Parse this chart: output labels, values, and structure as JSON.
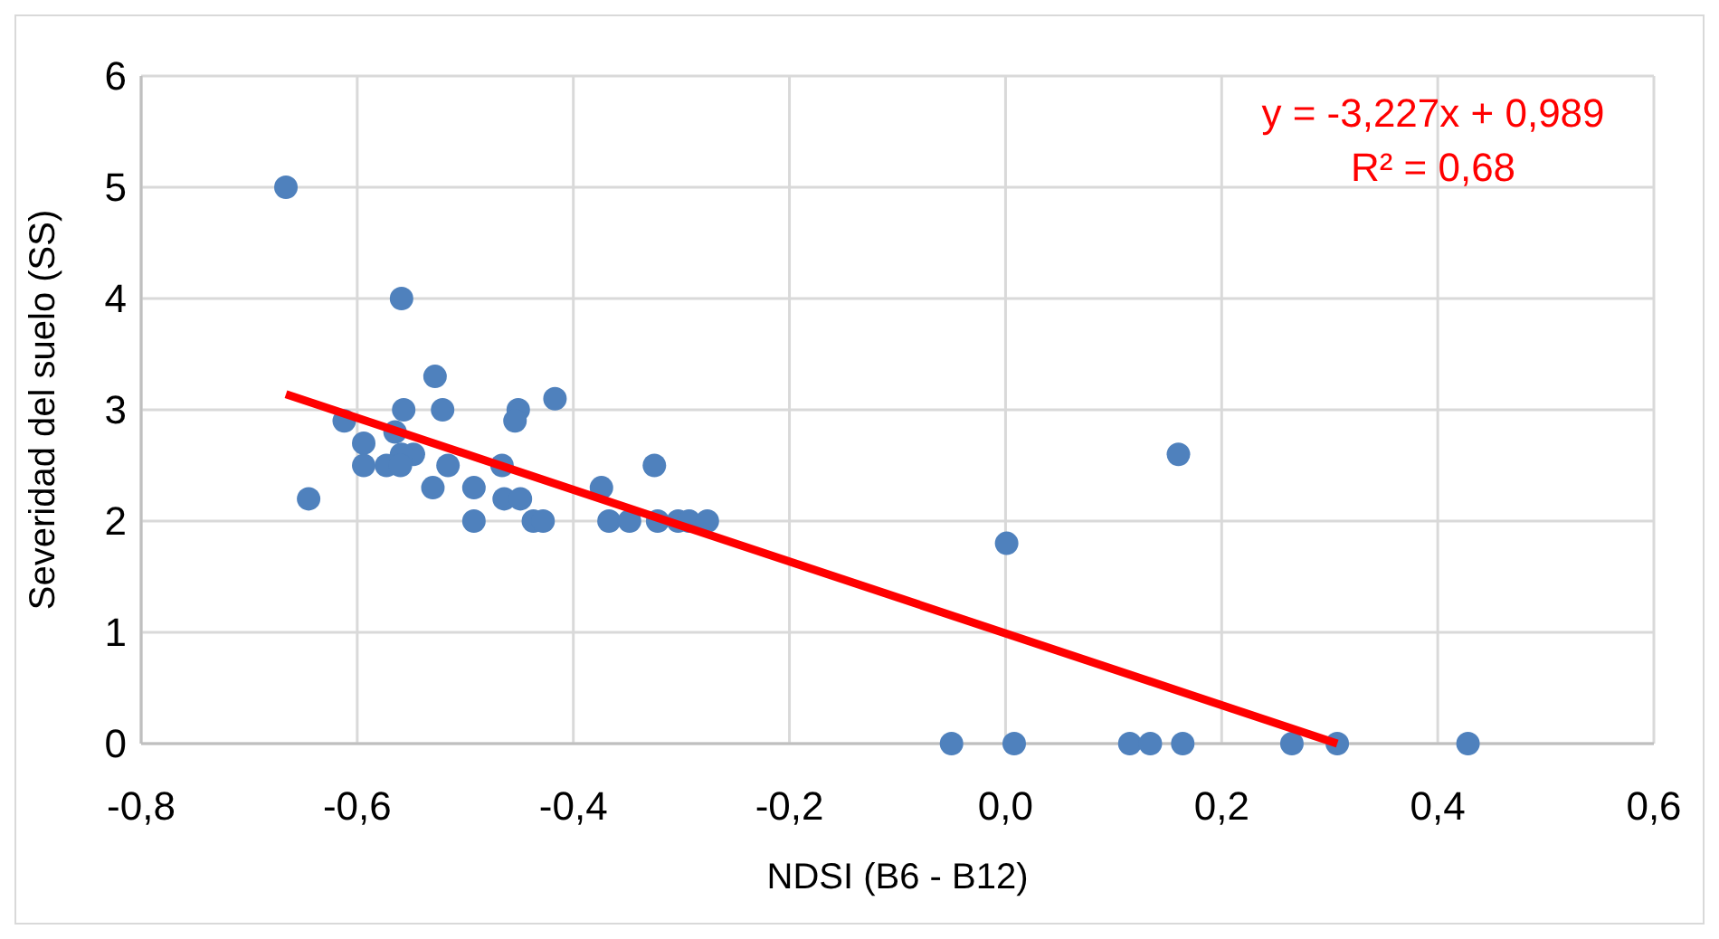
{
  "chart_data": {
    "type": "scatter",
    "xlabel": "NDSI (B6 - B12)",
    "ylabel": "Severidad del suelo (SS)",
    "xlim": [
      -0.8,
      0.6
    ],
    "ylim": [
      0,
      6
    ],
    "xticks": [
      {
        "value": -0.8,
        "label": "-0,8"
      },
      {
        "value": -0.6,
        "label": "-0,6"
      },
      {
        "value": -0.4,
        "label": "-0,4"
      },
      {
        "value": -0.2,
        "label": "-0,2"
      },
      {
        "value": 0,
        "label": "0,0"
      },
      {
        "value": 0.2,
        "label": "0,2"
      },
      {
        "value": 0.4,
        "label": "0,4"
      },
      {
        "value": 0.6,
        "label": "0,6"
      }
    ],
    "yticks": [
      0,
      1,
      2,
      3,
      4,
      5,
      6
    ],
    "grid": true,
    "marker": "circle",
    "series": [
      {
        "color": "#4f81bd",
        "x": [
          -0.666,
          -0.559,
          -0.528,
          -0.417,
          -0.557,
          -0.521,
          -0.451,
          -0.454,
          -0.612,
          -0.594,
          -0.565,
          -0.548,
          -0.559,
          -0.594,
          -0.573,
          -0.56,
          -0.516,
          -0.466,
          -0.645,
          -0.53,
          -0.492,
          -0.464,
          -0.449,
          -0.492,
          -0.437,
          -0.428,
          -0.374,
          -0.325,
          -0.367,
          -0.348,
          -0.322,
          -0.303,
          -0.293,
          -0.276,
          -0.05,
          0.001,
          0.008,
          0.115,
          0.134,
          0.16,
          0.164,
          0.265,
          0.307,
          0.428
        ],
        "values": [
          5,
          4,
          3.3,
          3.1,
          3,
          3,
          3,
          2.9,
          2.9,
          2.7,
          2.8,
          2.6,
          2.6,
          2.5,
          2.5,
          2.5,
          2.5,
          2.5,
          2.2,
          2.3,
          2.3,
          2.2,
          2.2,
          2,
          2,
          2,
          2.3,
          2.5,
          2,
          2,
          2,
          2,
          2,
          2,
          0,
          1.8,
          0,
          0,
          0,
          2.6,
          0,
          0,
          0,
          0
        ]
      },
      {
        "type": "line",
        "color": "#ff0000",
        "line_style": "solid",
        "marker": "none",
        "x": [
          -0.666,
          0.307
        ],
        "values": [
          3.14,
          0
        ]
      }
    ],
    "annotations": [
      "y = -3,227x + 0,989",
      "R² = 0,68"
    ]
  }
}
